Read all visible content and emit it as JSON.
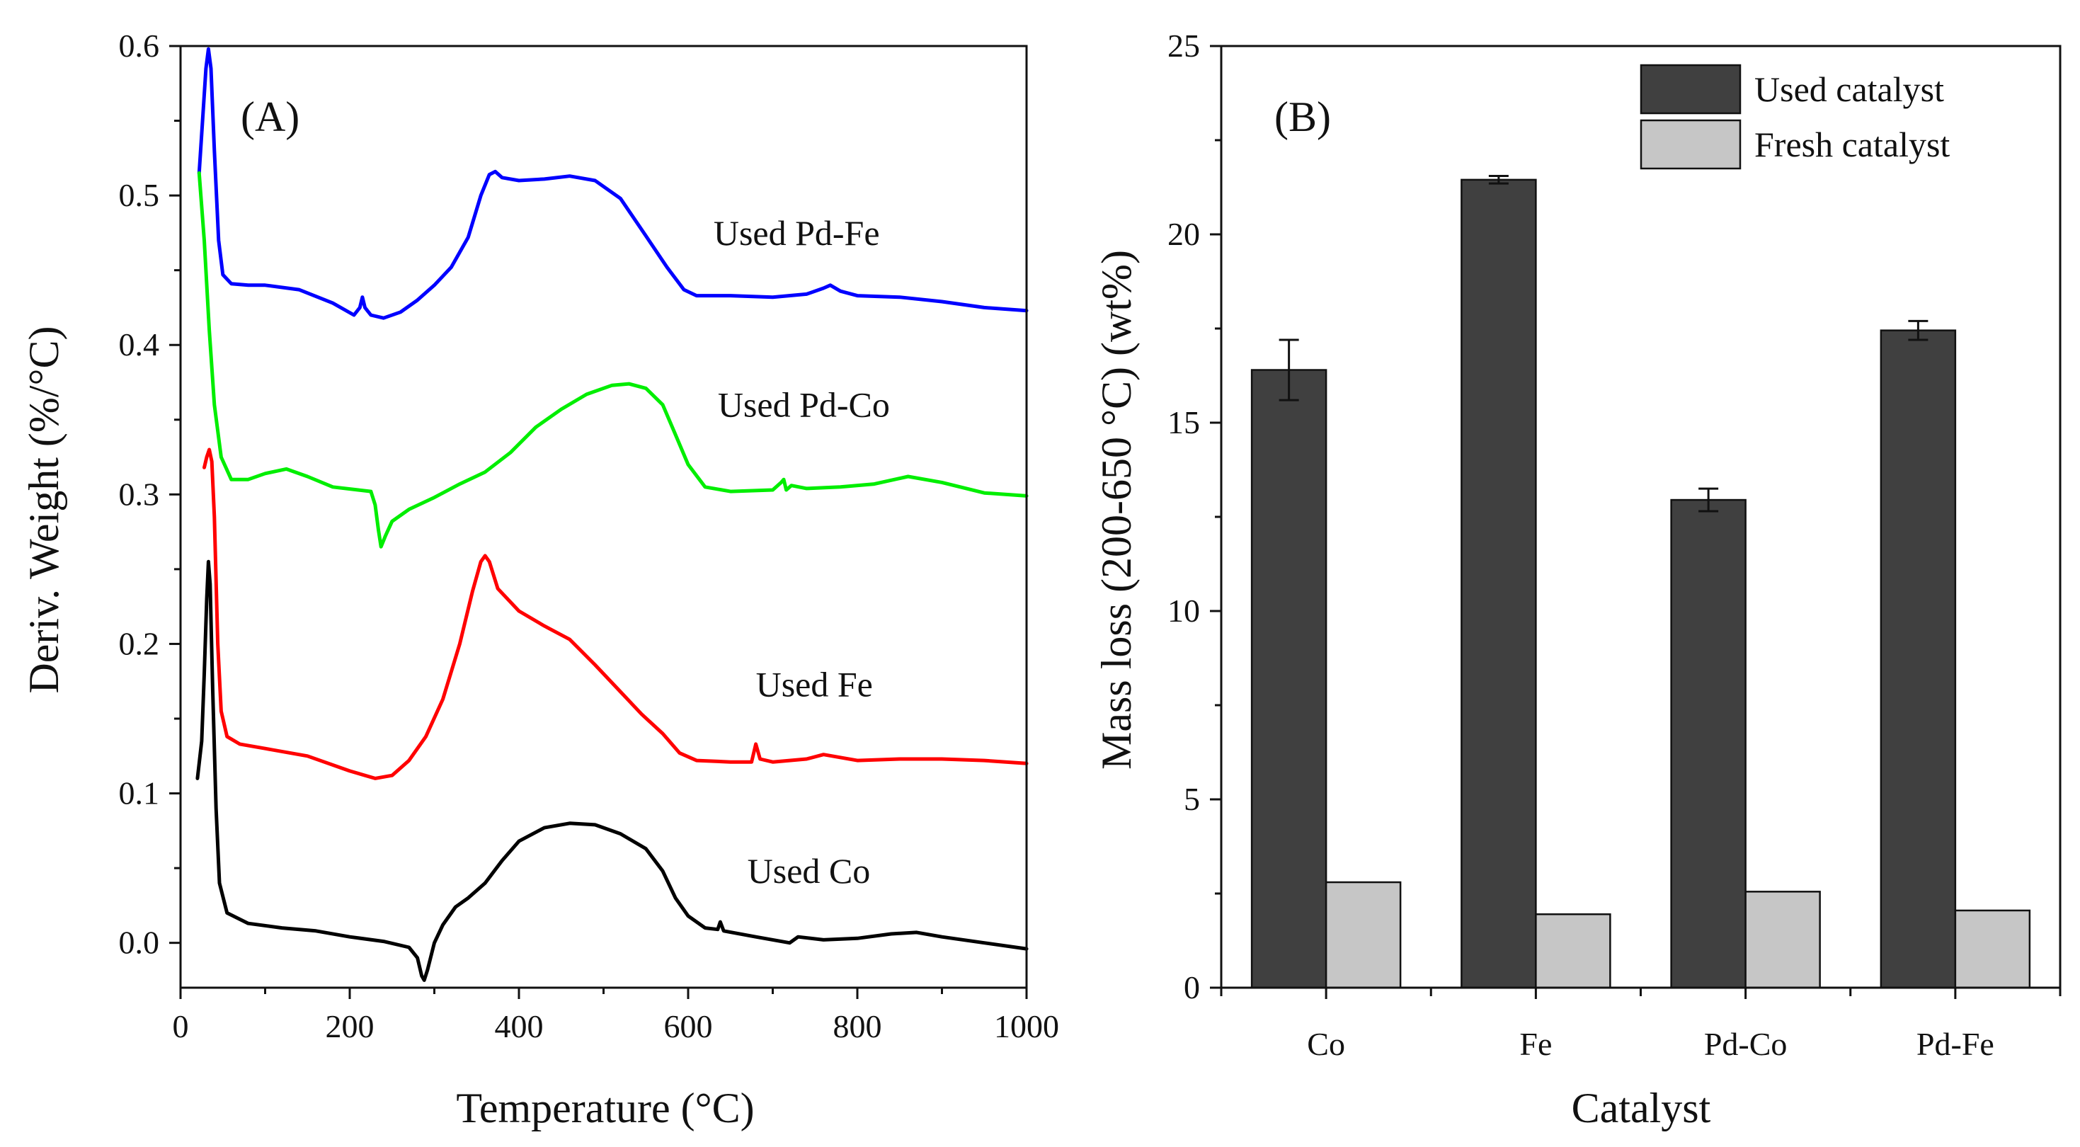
{
  "chart_data": [
    {
      "panel": "A",
      "type": "line",
      "panel_label": "(A)",
      "title": "",
      "xlabel": "Temperature (°C)",
      "ylabel": "Deriv. Weight (%/°C)",
      "xlim": [
        0,
        1000
      ],
      "ylim": [
        -0.03,
        0.6
      ],
      "x_ticks": [
        0,
        200,
        400,
        600,
        800,
        1000
      ],
      "x_tick_labels": [
        "0",
        "200",
        "400",
        "600",
        "800",
        "1000"
      ],
      "y_ticks": [
        0.0,
        0.1,
        0.2,
        0.3,
        0.4,
        0.5,
        0.6
      ],
      "y_tick_labels": [
        "0.0",
        "0.1",
        "0.2",
        "0.3",
        "0.4",
        "0.5",
        "0.6"
      ],
      "grid": false,
      "legend": "inline labels",
      "series": [
        {
          "name": "Used Pd-Fe",
          "color": "#0000ff",
          "label_at": [
            630,
            0.467
          ],
          "points": [
            [
              22,
              0.515
            ],
            [
              26,
              0.55
            ],
            [
              30,
              0.585
            ],
            [
              33,
              0.598
            ],
            [
              36,
              0.585
            ],
            [
              40,
              0.53
            ],
            [
              45,
              0.47
            ],
            [
              50,
              0.447
            ],
            [
              60,
              0.441
            ],
            [
              80,
              0.44
            ],
            [
              100,
              0.44
            ],
            [
              140,
              0.437
            ],
            [
              180,
              0.428
            ],
            [
              205,
              0.42
            ],
            [
              212,
              0.425
            ],
            [
              215,
              0.432
            ],
            [
              218,
              0.425
            ],
            [
              225,
              0.42
            ],
            [
              240,
              0.418
            ],
            [
              260,
              0.422
            ],
            [
              280,
              0.43
            ],
            [
              300,
              0.44
            ],
            [
              320,
              0.452
            ],
            [
              340,
              0.472
            ],
            [
              355,
              0.5
            ],
            [
              365,
              0.514
            ],
            [
              372,
              0.516
            ],
            [
              380,
              0.512
            ],
            [
              400,
              0.51
            ],
            [
              430,
              0.511
            ],
            [
              460,
              0.513
            ],
            [
              490,
              0.51
            ],
            [
              520,
              0.498
            ],
            [
              550,
              0.473
            ],
            [
              575,
              0.452
            ],
            [
              595,
              0.437
            ],
            [
              610,
              0.433
            ],
            [
              650,
              0.433
            ],
            [
              700,
              0.432
            ],
            [
              740,
              0.434
            ],
            [
              760,
              0.438
            ],
            [
              768,
              0.44
            ],
            [
              780,
              0.436
            ],
            [
              800,
              0.433
            ],
            [
              850,
              0.432
            ],
            [
              900,
              0.429
            ],
            [
              950,
              0.425
            ],
            [
              1000,
              0.423
            ]
          ]
        },
        {
          "name": "Used Pd-Co",
          "color": "#00ee00",
          "label_at": [
            635,
            0.352
          ],
          "points": [
            [
              22,
              0.515
            ],
            [
              28,
              0.47
            ],
            [
              34,
              0.41
            ],
            [
              40,
              0.36
            ],
            [
              48,
              0.325
            ],
            [
              60,
              0.31
            ],
            [
              80,
              0.31
            ],
            [
              100,
              0.314
            ],
            [
              125,
              0.317
            ],
            [
              150,
              0.312
            ],
            [
              180,
              0.305
            ],
            [
              210,
              0.303
            ],
            [
              225,
              0.302
            ],
            [
              230,
              0.293
            ],
            [
              234,
              0.276
            ],
            [
              237,
              0.265
            ],
            [
              242,
              0.272
            ],
            [
              250,
              0.282
            ],
            [
              270,
              0.29
            ],
            [
              300,
              0.298
            ],
            [
              330,
              0.307
            ],
            [
              360,
              0.315
            ],
            [
              390,
              0.328
            ],
            [
              420,
              0.345
            ],
            [
              450,
              0.357
            ],
            [
              480,
              0.367
            ],
            [
              510,
              0.373
            ],
            [
              530,
              0.374
            ],
            [
              550,
              0.371
            ],
            [
              570,
              0.36
            ],
            [
              585,
              0.34
            ],
            [
              600,
              0.32
            ],
            [
              620,
              0.305
            ],
            [
              650,
              0.302
            ],
            [
              700,
              0.303
            ],
            [
              710,
              0.308
            ],
            [
              713,
              0.31
            ],
            [
              716,
              0.303
            ],
            [
              722,
              0.306
            ],
            [
              740,
              0.304
            ],
            [
              780,
              0.305
            ],
            [
              820,
              0.307
            ],
            [
              860,
              0.312
            ],
            [
              900,
              0.308
            ],
            [
              950,
              0.301
            ],
            [
              1000,
              0.299
            ]
          ]
        },
        {
          "name": "Used Fe",
          "color": "#ff0000",
          "label_at": [
            680,
            0.165
          ],
          "points": [
            [
              28,
              0.318
            ],
            [
              31,
              0.325
            ],
            [
              34,
              0.33
            ],
            [
              37,
              0.322
            ],
            [
              40,
              0.285
            ],
            [
              44,
              0.2
            ],
            [
              48,
              0.155
            ],
            [
              55,
              0.138
            ],
            [
              70,
              0.133
            ],
            [
              100,
              0.13
            ],
            [
              150,
              0.125
            ],
            [
              200,
              0.115
            ],
            [
              230,
              0.11
            ],
            [
              250,
              0.112
            ],
            [
              270,
              0.122
            ],
            [
              290,
              0.138
            ],
            [
              310,
              0.163
            ],
            [
              330,
              0.2
            ],
            [
              345,
              0.235
            ],
            [
              355,
              0.255
            ],
            [
              360,
              0.259
            ],
            [
              365,
              0.255
            ],
            [
              375,
              0.237
            ],
            [
              400,
              0.222
            ],
            [
              430,
              0.212
            ],
            [
              460,
              0.203
            ],
            [
              490,
              0.186
            ],
            [
              520,
              0.168
            ],
            [
              545,
              0.153
            ],
            [
              570,
              0.14
            ],
            [
              590,
              0.127
            ],
            [
              610,
              0.122
            ],
            [
              650,
              0.121
            ],
            [
              675,
              0.121
            ],
            [
              680,
              0.133
            ],
            [
              685,
              0.123
            ],
            [
              700,
              0.121
            ],
            [
              740,
              0.123
            ],
            [
              760,
              0.126
            ],
            [
              800,
              0.122
            ],
            [
              850,
              0.123
            ],
            [
              900,
              0.123
            ],
            [
              950,
              0.122
            ],
            [
              1000,
              0.12
            ]
          ]
        },
        {
          "name": "Used Co",
          "color": "#000000",
          "label_at": [
            670,
            0.04
          ],
          "points": [
            [
              20,
              0.11
            ],
            [
              25,
              0.135
            ],
            [
              28,
              0.18
            ],
            [
              31,
              0.23
            ],
            [
              33,
              0.255
            ],
            [
              35,
              0.24
            ],
            [
              38,
              0.17
            ],
            [
              42,
              0.09
            ],
            [
              46,
              0.04
            ],
            [
              55,
              0.02
            ],
            [
              80,
              0.013
            ],
            [
              120,
              0.01
            ],
            [
              160,
              0.008
            ],
            [
              200,
              0.004
            ],
            [
              240,
              0.001
            ],
            [
              270,
              -0.003
            ],
            [
              280,
              -0.01
            ],
            [
              285,
              -0.022
            ],
            [
              288,
              -0.025
            ],
            [
              292,
              -0.018
            ],
            [
              300,
              0.0
            ],
            [
              310,
              0.012
            ],
            [
              325,
              0.024
            ],
            [
              340,
              0.03
            ],
            [
              360,
              0.04
            ],
            [
              380,
              0.055
            ],
            [
              400,
              0.068
            ],
            [
              430,
              0.077
            ],
            [
              460,
              0.08
            ],
            [
              490,
              0.079
            ],
            [
              520,
              0.073
            ],
            [
              550,
              0.063
            ],
            [
              570,
              0.048
            ],
            [
              585,
              0.03
            ],
            [
              600,
              0.018
            ],
            [
              620,
              0.01
            ],
            [
              635,
              0.009
            ],
            [
              638,
              0.014
            ],
            [
              642,
              0.008
            ],
            [
              680,
              0.004
            ],
            [
              720,
              0.0
            ],
            [
              730,
              0.004
            ],
            [
              760,
              0.002
            ],
            [
              800,
              0.003
            ],
            [
              840,
              0.006
            ],
            [
              870,
              0.007
            ],
            [
              900,
              0.004
            ],
            [
              950,
              0.0
            ],
            [
              1000,
              -0.004
            ]
          ]
        }
      ]
    },
    {
      "panel": "B",
      "type": "bar",
      "panel_label": "(B)",
      "title": "",
      "xlabel": "Catalyst",
      "ylabel": "Mass loss (200-650 °C) (wt%)",
      "ylim": [
        0,
        25
      ],
      "y_ticks": [
        0,
        5,
        10,
        15,
        20,
        25
      ],
      "y_tick_labels": [
        "0",
        "5",
        "10",
        "15",
        "20",
        "25"
      ],
      "categories": [
        "Co",
        "Fe",
        "Pd-Co",
        "Pd-Fe"
      ],
      "grid": false,
      "legend": "top-right",
      "series": [
        {
          "name": "Used catalyst",
          "color": "#404040",
          "values": [
            16.4,
            21.45,
            12.95,
            17.45
          ],
          "errors": [
            0.8,
            0.1,
            0.3,
            0.25
          ]
        },
        {
          "name": "Fresh catalyst",
          "color": "#c6c6c6",
          "values": [
            2.8,
            1.95,
            2.55,
            2.05
          ],
          "errors": [
            0,
            0,
            0,
            0
          ]
        }
      ]
    }
  ]
}
